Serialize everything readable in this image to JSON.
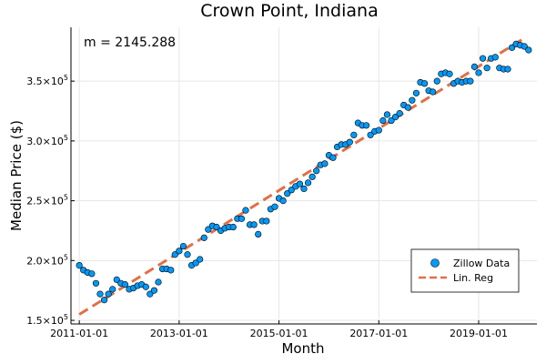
{
  "chart_data": {
    "type": "scatter",
    "title": "Crown Point, Indiana",
    "xlabel": "Month",
    "ylabel": "Median Price ($)",
    "annotation": "m = 2145.288",
    "legend_position": "bottom-right",
    "grid": true,
    "x_range": [
      "2010-11-01",
      "2020-03-01"
    ],
    "y_range": [
      147000,
      395000
    ],
    "x_ticks": [
      {
        "date": "2011-01-01",
        "label": "2011-01-01"
      },
      {
        "date": "2013-01-01",
        "label": "2013-01-01"
      },
      {
        "date": "2015-01-01",
        "label": "2015-01-01"
      },
      {
        "date": "2017-01-01",
        "label": "2017-01-01"
      },
      {
        "date": "2019-01-01",
        "label": "2019-01-01"
      }
    ],
    "y_ticks": [
      {
        "value": 150000,
        "base": "1.5×10",
        "exp": "5"
      },
      {
        "value": 200000,
        "base": "2.0×10",
        "exp": "5"
      },
      {
        "value": 250000,
        "base": "2.5×10",
        "exp": "5"
      },
      {
        "value": 300000,
        "base": "3.0×10",
        "exp": "5"
      },
      {
        "value": 350000,
        "base": "3.5×10",
        "exp": "5"
      }
    ],
    "series": [
      {
        "name": "Zillow Data",
        "kind": "scatter",
        "color": "#009AF9",
        "start": "2011-01",
        "values": [
          196000,
          192000,
          190000,
          189000,
          181000,
          172000,
          167000,
          172000,
          176000,
          184000,
          181000,
          180000,
          176000,
          177000,
          179000,
          180000,
          178000,
          172000,
          175000,
          182000,
          193000,
          193000,
          192000,
          205000,
          208000,
          212000,
          205000,
          196000,
          198000,
          201000,
          219000,
          226000,
          229000,
          228000,
          225000,
          227000,
          228000,
          228000,
          235000,
          235000,
          242000,
          230000,
          230000,
          222000,
          233000,
          233000,
          243000,
          245000,
          252000,
          250000,
          256000,
          259000,
          262000,
          264000,
          260000,
          265000,
          270000,
          275000,
          280000,
          281000,
          288000,
          286000,
          295000,
          297000,
          297000,
          299000,
          305000,
          315000,
          313000,
          313000,
          305000,
          308000,
          309000,
          317000,
          322000,
          317000,
          320000,
          323000,
          330000,
          328000,
          334000,
          340000,
          349000,
          348000,
          342000,
          341000,
          350000,
          356000,
          357000,
          356000,
          348000,
          350000,
          349000,
          350000,
          350000,
          362000,
          357000,
          369000,
          361000,
          369000,
          370000,
          361000,
          360000,
          360000,
          378000,
          381000,
          380000,
          379000,
          376000
        ]
      },
      {
        "name": "Lin. Reg",
        "kind": "line",
        "color": "#E26F46",
        "x": [
          "2011-01-01",
          "2019-12-01"
        ],
        "values": [
          155000,
          386000
        ]
      }
    ]
  }
}
